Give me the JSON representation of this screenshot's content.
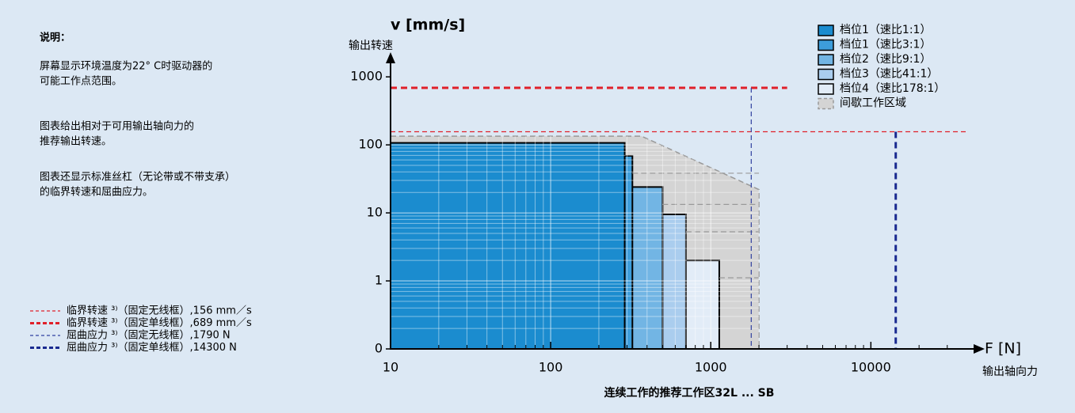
{
  "chart_data": {
    "type": "range-boxes",
    "title": "连续工作的推荐工作区32L ... SB",
    "y_label": "v [mm/s]",
    "y_sublabel": "输出转速",
    "x_label": "F [N]",
    "x_sublabel": "输出轴向力",
    "log_x": true,
    "log_y": true,
    "grid": true,
    "xlim": [
      10,
      40000
    ],
    "ylim": [
      0.1,
      1500
    ],
    "xticks": [
      10,
      100,
      1000,
      10000
    ],
    "yticks": [
      {
        "value": 0.1,
        "label": "0"
      },
      1,
      10,
      100,
      1000
    ],
    "series": [
      {
        "name": "档位1（速比1:1）",
        "color": "#1b8ccf",
        "force": 290,
        "speed": 107
      },
      {
        "name": "档位1（速比3:1）",
        "color": "#3d9ddb",
        "force": 324,
        "speed": 69
      },
      {
        "name": "档位2（速比9:1）",
        "color": "#72b5e4",
        "force": 500,
        "speed": 24
      },
      {
        "name": "档位3（速比41:1）",
        "color": "#aacdee",
        "force": 700,
        "speed": 9.5
      },
      {
        "name": "档位4（速比178:1）",
        "color": "#e2ecf7",
        "force": 1130,
        "speed": 2
      }
    ],
    "intermittent": {
      "name": "间歇工作区域",
      "color": "#d4d4d4",
      "x": [
        10,
        370,
        2000,
        2000,
        10
      ],
      "y": [
        134,
        134,
        22,
        0.1,
        0.1
      ]
    },
    "reference_lines": [
      {
        "label": "临界转速 ³⁾（固定无线框）,156 mm／s",
        "axis": "y",
        "value": 156,
        "color": "#e0202a",
        "width": 1.2,
        "end": 40000
      },
      {
        "label": "临界转速 ³⁾（固定单线框）,689 mm／s",
        "axis": "y",
        "value": 689,
        "color": "#e0202a",
        "width": 3,
        "end": 3000
      },
      {
        "label": "屈曲应力 ³⁾（固定无线框）,1790 N",
        "axis": "x",
        "value": 1790,
        "color": "#3040a0",
        "width": 1.2,
        "end": 689
      },
      {
        "label": "屈曲应力 ³⁾（固定单线框）,14300 N",
        "axis": "x",
        "value": 14300,
        "color": "#1a2a90",
        "width": 3,
        "end": 156
      }
    ],
    "legend": "upper right"
  },
  "notes": {
    "title": "说明：",
    "paragraphs": [
      [
        "屏幕显示环境温度为22° C时驱动器的",
        "可能工作点范围。"
      ],
      [
        "图表给出相对于可用输出轴向力的",
        "推荐输出转速。"
      ],
      [
        "图表还显示标准丝杠（无论带或不带支承）",
        "的临界转速和屈曲应力。"
      ]
    ]
  }
}
